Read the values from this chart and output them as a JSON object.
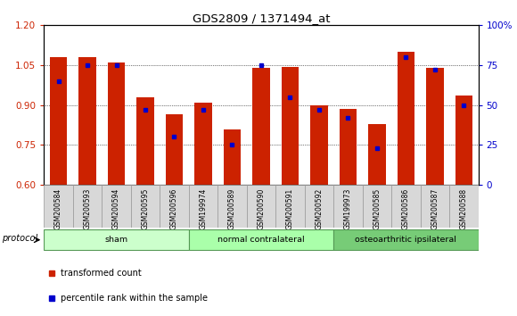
{
  "title": "GDS2809 / 1371494_at",
  "samples": [
    "GSM200584",
    "GSM200593",
    "GSM200594",
    "GSM200595",
    "GSM200596",
    "GSM199974",
    "GSM200589",
    "GSM200590",
    "GSM200591",
    "GSM200592",
    "GSM199973",
    "GSM200585",
    "GSM200586",
    "GSM200587",
    "GSM200588"
  ],
  "red_values": [
    1.08,
    1.08,
    1.06,
    0.93,
    0.865,
    0.91,
    0.81,
    1.04,
    1.045,
    0.9,
    0.885,
    0.83,
    1.1,
    1.04,
    0.935
  ],
  "blue_values_pct": [
    65,
    75,
    75,
    47,
    30,
    47,
    25,
    75,
    55,
    47,
    42,
    23,
    80,
    72,
    50
  ],
  "ylim_left": [
    0.6,
    1.2
  ],
  "ylim_right": [
    0,
    100
  ],
  "yticks_left": [
    0.6,
    0.75,
    0.9,
    1.05,
    1.2
  ],
  "yticks_right": [
    0,
    25,
    50,
    75,
    100
  ],
  "groups": [
    {
      "label": "sham",
      "start": 0,
      "end": 5,
      "color": "#ccffcc"
    },
    {
      "label": "normal contralateral",
      "start": 5,
      "end": 10,
      "color": "#aaffaa"
    },
    {
      "label": "osteoarthritic ipsilateral",
      "start": 10,
      "end": 15,
      "color": "#77cc77"
    }
  ],
  "bar_color": "#cc2200",
  "blue_color": "#0000cc",
  "bar_width": 0.6,
  "left_tick_color": "#cc2200",
  "right_tick_color": "#0000cc",
  "tick_label_bg": "#d8d8d8",
  "legend_items": [
    {
      "color": "#cc2200",
      "label": "transformed count"
    },
    {
      "color": "#0000cc",
      "label": "percentile rank within the sample"
    }
  ]
}
